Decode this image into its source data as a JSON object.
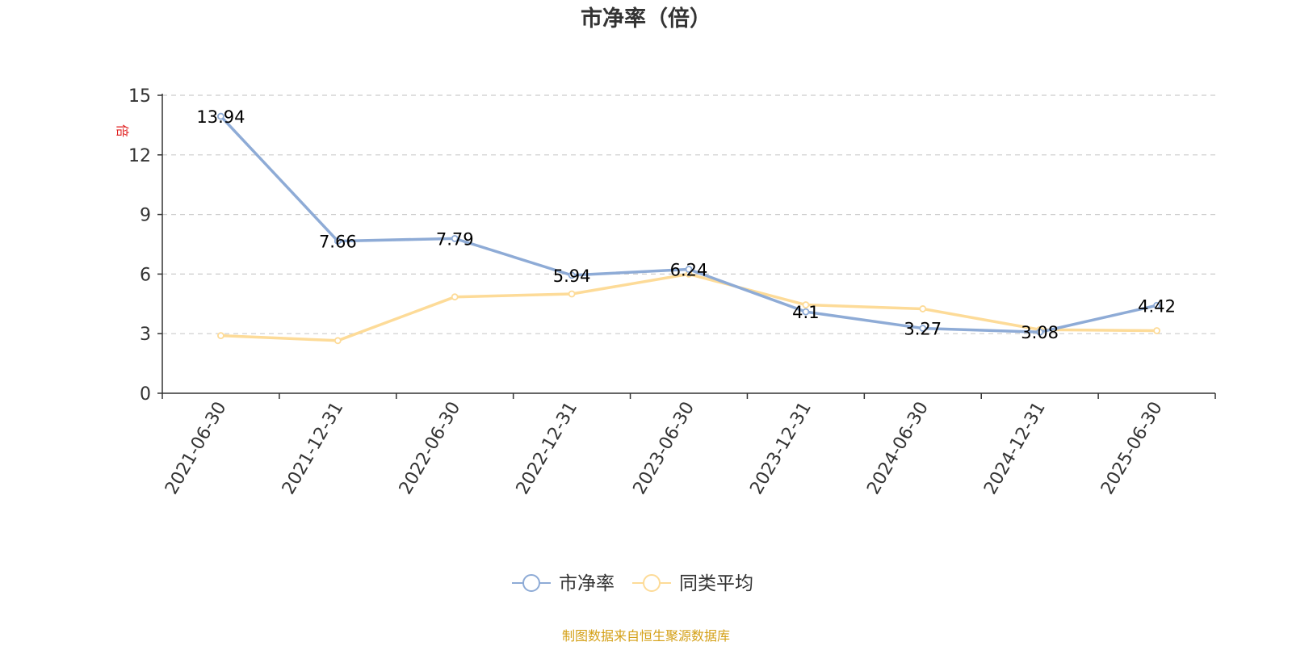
{
  "chart_data": {
    "type": "line",
    "title": "市净率（倍）",
    "ylabel": "倍",
    "categories": [
      "2021-06-30",
      "2021-12-31",
      "2022-06-30",
      "2022-12-31",
      "2023-06-30",
      "2023-12-31",
      "2024-06-30",
      "2024-12-31",
      "2025-06-30"
    ],
    "ylim": [
      0,
      15
    ],
    "yticks": [
      0,
      3,
      6,
      9,
      12,
      15
    ],
    "grid": true,
    "legend_position": "bottom-center",
    "series": [
      {
        "name": "市净率",
        "color": "#8eabd6",
        "values": [
          13.94,
          7.66,
          7.79,
          5.94,
          6.24,
          4.1,
          3.27,
          3.08,
          4.42
        ],
        "labels": [
          "13.94",
          "7.66",
          "7.79",
          "5.94",
          "6.24",
          "4.1",
          "3.27",
          "3.08",
          "4.42"
        ]
      },
      {
        "name": "同类平均",
        "color": "#fddb98",
        "values": [
          2.9,
          2.65,
          4.85,
          5.0,
          6.0,
          4.45,
          4.25,
          3.2,
          3.15
        ]
      }
    ],
    "source": "制图数据来自恒生聚源数据库",
    "source_color": "#d4a017"
  }
}
